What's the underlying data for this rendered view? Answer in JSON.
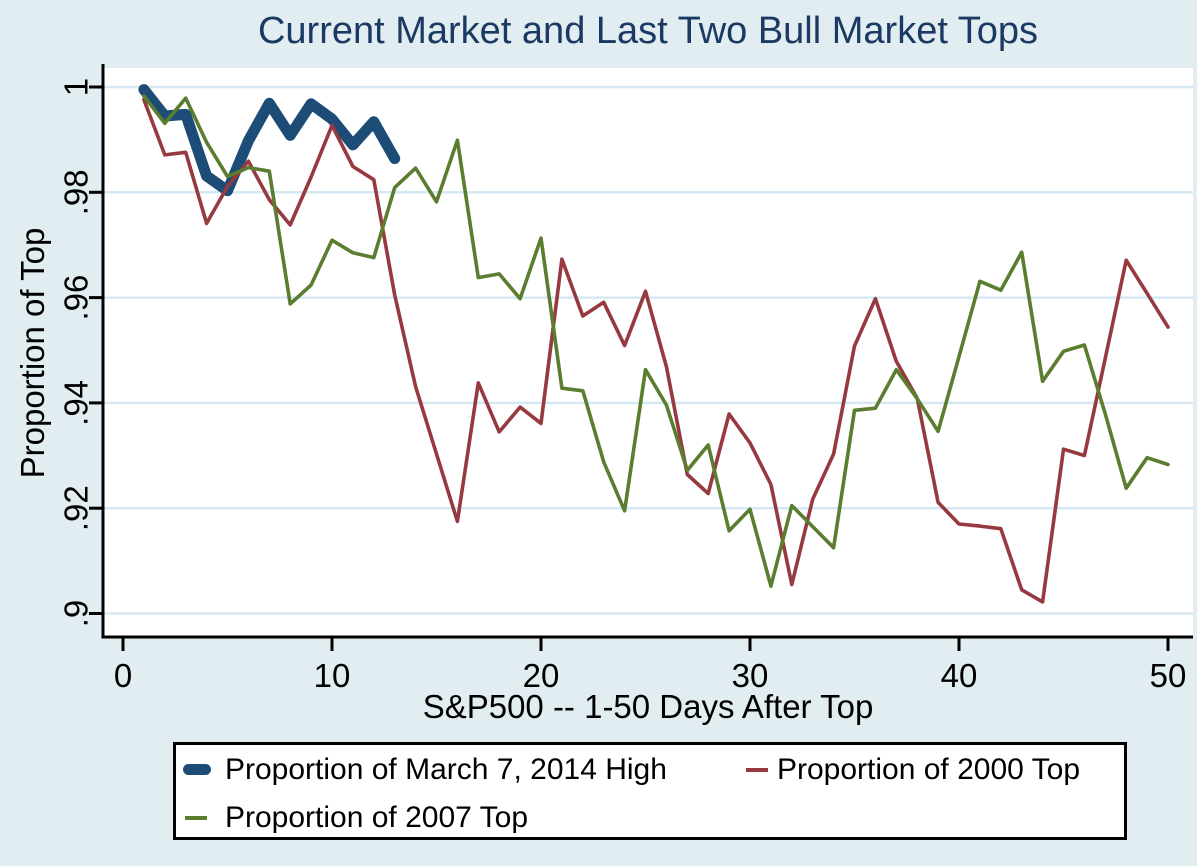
{
  "colors": {
    "background": "#e2edf1",
    "plot_background": "#ffffff",
    "grid": "#d6e8f3",
    "axis": "#000000",
    "tick_label": "#000000",
    "title": "#1b3a63",
    "legend_background": "#ffffff",
    "legend_border": "#000000"
  },
  "chart_data": {
    "type": "line",
    "title": "Current Market and Last Two Bull Market Tops",
    "xlabel": "S&P500 -- 1-50 Days After Top",
    "ylabel": "Proportion of Top",
    "x_range": [
      0,
      50
    ],
    "y_range": [
      0.9,
      1.0
    ],
    "grid": true,
    "legend_position": "bottom",
    "x_ticks": [
      {
        "v": 0,
        "label": "0"
      },
      {
        "v": 10,
        "label": "10"
      },
      {
        "v": 20,
        "label": "20"
      },
      {
        "v": 30,
        "label": "30"
      },
      {
        "v": 40,
        "label": "40"
      },
      {
        "v": 50,
        "label": "50"
      }
    ],
    "y_ticks": [
      {
        "v": 1,
        "label": "1"
      },
      {
        "v": 0.98,
        "label": ".98"
      },
      {
        "v": 0.96,
        "label": ".96"
      },
      {
        "v": 0.94,
        "label": ".94"
      },
      {
        "v": 0.92,
        "label": ".92"
      },
      {
        "v": 0.9,
        "label": ".9"
      }
    ],
    "series": [
      {
        "id": "march-2014-high",
        "name": "Proportion of March 7, 2014 High",
        "color": "#1d4d77",
        "thick": true,
        "first_day": 1,
        "values": [
          0.9995,
          0.9945,
          0.9948,
          0.9831,
          0.9803,
          0.9898,
          0.9969,
          0.9908,
          0.9968,
          0.9939,
          0.989,
          0.9934,
          0.9864
        ]
      },
      {
        "id": "2000-top",
        "name": "Proportion of 2000 Top",
        "color": "#963a40",
        "thick": false,
        "first_day": 1,
        "values": [
          0.9976,
          0.9871,
          0.9876,
          0.9741,
          0.9811,
          0.9859,
          0.9786,
          0.9738,
          0.9829,
          0.9927,
          0.9849,
          0.9824,
          0.9605,
          0.9431,
          0.9303,
          0.9175,
          0.9438,
          0.9345,
          0.9392,
          0.9361,
          0.9673,
          0.9565,
          0.9591,
          0.9509,
          0.9612,
          0.9469,
          0.9264,
          0.9228,
          0.9379,
          0.9324,
          0.9245,
          0.9055,
          0.9217,
          0.9303,
          0.9508,
          0.9598,
          0.9479,
          0.9409,
          0.9211,
          0.917,
          0.9166,
          0.9161,
          0.9045,
          0.9022,
          0.9312,
          0.93,
          0.9485,
          0.9671,
          0.9608,
          0.9544
        ]
      },
      {
        "id": "2007-top",
        "name": "Proportion of 2007 Top",
        "color": "#5b7d2f",
        "thick": false,
        "first_day": 1,
        "values": [
          0.9983,
          0.9931,
          0.9979,
          0.9895,
          0.983,
          0.9847,
          0.984,
          0.9588,
          0.9624,
          0.9709,
          0.9685,
          0.9676,
          0.9809,
          0.9846,
          0.9782,
          0.9899,
          0.9638,
          0.9645,
          0.9598,
          0.9713,
          0.9428,
          0.9423,
          0.9288,
          0.9195,
          0.9463,
          0.9396,
          0.9272,
          0.932,
          0.9157,
          0.9198,
          0.9052,
          0.9205,
          0.9165,
          0.9125,
          0.9386,
          0.939,
          0.9463,
          0.9408,
          0.9346,
          0.9488,
          0.9631,
          0.9614,
          0.9686,
          0.9441,
          0.9498,
          0.951,
          0.9379,
          0.9238,
          0.9296,
          0.9283
        ]
      }
    ]
  }
}
